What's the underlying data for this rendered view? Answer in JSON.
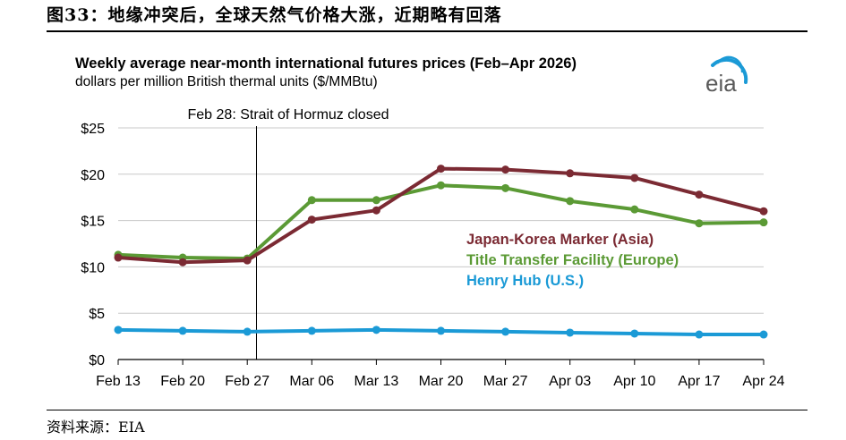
{
  "figure_title": "图33：地缘冲突后，全球天然气价格大涨，近期略有回落",
  "source_text": "资料来源：EIA",
  "logo_text": "eia",
  "chart_data": {
    "type": "line",
    "title": "Weekly average near-month international futures prices (Feb–Apr 2026)",
    "subtitle": "dollars per million British thermal units ($/MMBtu)",
    "categories": [
      "Feb 13",
      "Feb 20",
      "Feb 27",
      "Mar 06",
      "Mar 13",
      "Mar 20",
      "Mar 27",
      "Apr 03",
      "Apr 10",
      "Apr 17",
      "Apr 24"
    ],
    "ylim": [
      0,
      25
    ],
    "yticks": [
      0,
      5,
      10,
      15,
      20,
      25
    ],
    "ytick_labels": [
      "$0",
      "$5",
      "$10",
      "$15",
      "$20",
      "$25"
    ],
    "grid": true,
    "legend_position": "right",
    "annotation": {
      "category_index": 2,
      "text": "Feb 28: Strait of Hormuz closed"
    },
    "series": [
      {
        "name": "Japan-Korea Marker (Asia)",
        "color": "#7b2a33",
        "values": [
          11.0,
          10.5,
          10.7,
          15.1,
          16.1,
          20.6,
          20.5,
          20.1,
          19.6,
          17.8,
          16.0
        ]
      },
      {
        "name": "Title Transfer Facility (Europe)",
        "color": "#5b9a35",
        "values": [
          11.3,
          11.0,
          10.9,
          17.2,
          17.2,
          18.8,
          18.5,
          17.1,
          16.2,
          14.7,
          14.8
        ]
      },
      {
        "name": "Henry Hub (U.S.)",
        "color": "#1b9ad6",
        "values": [
          3.2,
          3.1,
          3.0,
          3.1,
          3.2,
          3.1,
          3.0,
          2.9,
          2.8,
          2.7,
          2.7
        ]
      }
    ]
  }
}
